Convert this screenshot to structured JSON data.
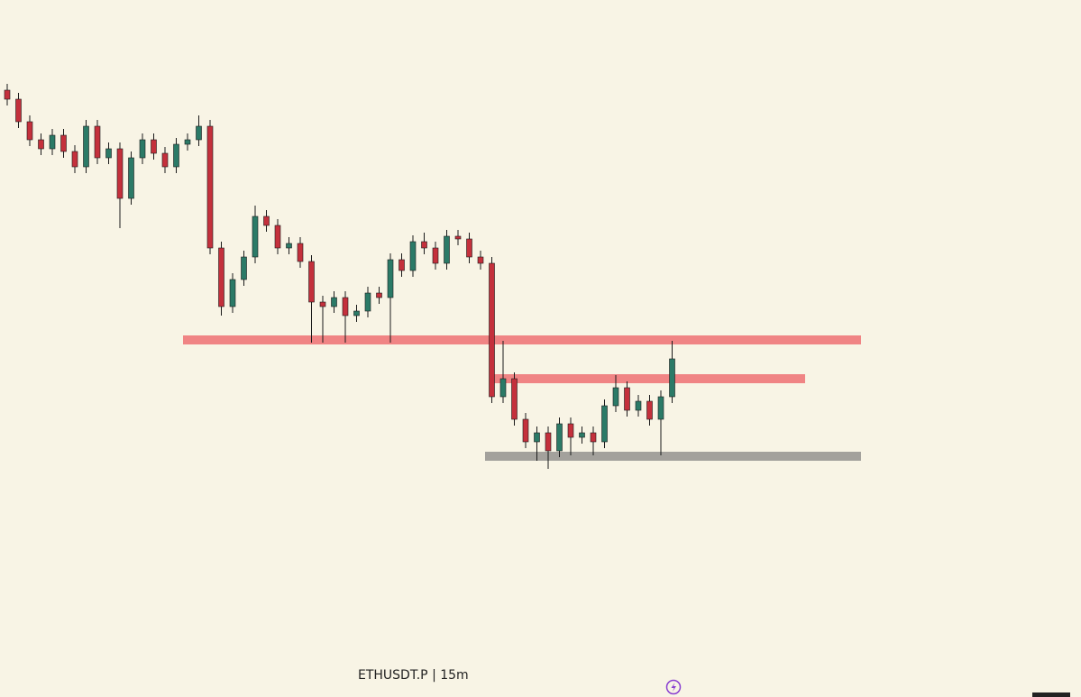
{
  "chart_data": {
    "type": "candlestick",
    "title": "ETHUSDT.P | 15m",
    "up_color": "#2b7a67",
    "down_color": "#c4303c",
    "ylim": [
      0,
      773
    ],
    "open": [
      673,
      663,
      638,
      618,
      608,
      623,
      605,
      588,
      633,
      598,
      608,
      553,
      598,
      618,
      603,
      588,
      613,
      618,
      633,
      498,
      433,
      463,
      488,
      533,
      523,
      498,
      503,
      483,
      438,
      433,
      443,
      423,
      428,
      448,
      443,
      485,
      473,
      505,
      498,
      481,
      511,
      508,
      488,
      481,
      333,
      353,
      308,
      283,
      293,
      273,
      303,
      288,
      293,
      283,
      323,
      343,
      318,
      328,
      308,
      333
    ],
    "high": [
      680,
      670,
      645,
      625,
      630,
      630,
      612,
      640,
      640,
      615,
      615,
      605,
      625,
      625,
      610,
      620,
      625,
      645,
      640,
      505,
      470,
      495,
      545,
      540,
      530,
      510,
      510,
      490,
      445,
      450,
      450,
      435,
      455,
      455,
      492,
      492,
      512,
      515,
      505,
      518,
      518,
      515,
      495,
      488,
      395,
      360,
      315,
      300,
      300,
      310,
      310,
      300,
      300,
      330,
      357,
      350,
      335,
      335,
      340,
      395
    ],
    "low": [
      656,
      631,
      611,
      601,
      601,
      598,
      581,
      581,
      591,
      591,
      520,
      546,
      591,
      596,
      581,
      581,
      606,
      611,
      491,
      423,
      426,
      456,
      481,
      516,
      491,
      491,
      476,
      393,
      393,
      426,
      393,
      416,
      421,
      436,
      393,
      466,
      466,
      491,
      474,
      474,
      501,
      481,
      474,
      326,
      326,
      301,
      276,
      262,
      253,
      266,
      268,
      281,
      268,
      276,
      316,
      311,
      311,
      301,
      268,
      326
    ],
    "close": [
      663,
      638,
      618,
      608,
      623,
      605,
      588,
      633,
      598,
      608,
      553,
      598,
      618,
      603,
      588,
      613,
      618,
      633,
      498,
      433,
      463,
      488,
      533,
      523,
      498,
      503,
      483,
      438,
      433,
      443,
      423,
      428,
      448,
      443,
      485,
      473,
      505,
      498,
      481,
      511,
      508,
      488,
      481,
      333,
      353,
      308,
      283,
      293,
      273,
      303,
      288,
      293,
      283,
      323,
      343,
      318,
      328,
      308,
      333,
      375
    ],
    "zones": [
      {
        "low": 391,
        "high": 401,
        "color": "#f08484"
      },
      {
        "low": 348,
        "high": 358,
        "color": "#f08484"
      },
      {
        "low": 262,
        "high": 272,
        "color": "#a3a19c"
      }
    ]
  }
}
